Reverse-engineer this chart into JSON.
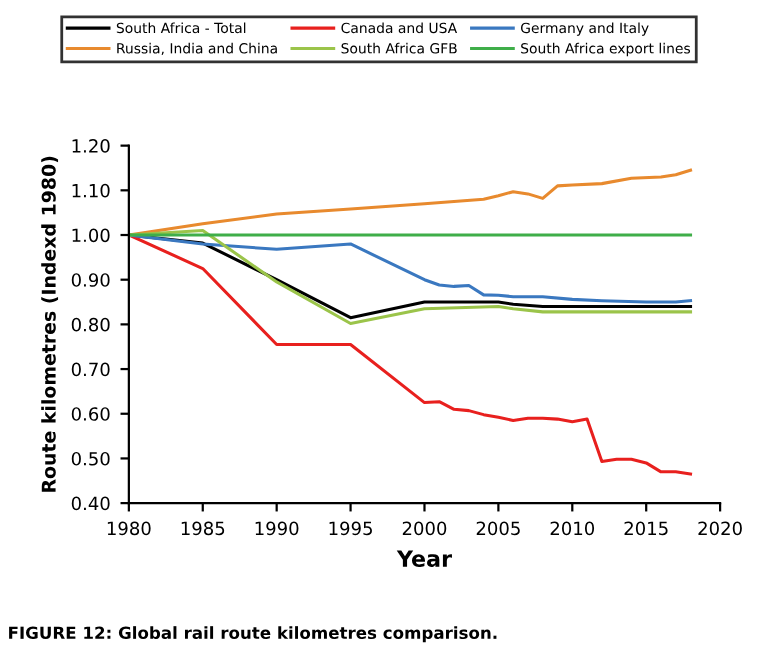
{
  "chart_data": {
    "type": "line",
    "xlabel": "Year",
    "ylabel": "Route kilometres (Indexd 1980)",
    "xlim": [
      1980,
      2020
    ],
    "xticks": [
      1980,
      1985,
      1990,
      1995,
      2000,
      2005,
      2010,
      2015,
      2020
    ],
    "ylim": [
      0.4,
      1.2
    ],
    "yticks": [
      {
        "value": 0.4,
        "label": "0.40"
      },
      {
        "value": 0.5,
        "label": "0.50"
      },
      {
        "value": 0.6,
        "label": "0.60"
      },
      {
        "value": 0.7,
        "label": "0.70"
      },
      {
        "value": 0.8,
        "label": "0.80"
      },
      {
        "value": 0.9,
        "label": "0.90"
      },
      {
        "value": 1.0,
        "label": "1.00"
      },
      {
        "value": 1.1,
        "label": "1.10"
      },
      {
        "value": 1.2,
        "label": "1.20"
      }
    ],
    "grid": false,
    "legend": "top",
    "marker": "none",
    "line_style": "solid",
    "annotations": [
      "FIGURE 12: Global rail route kilometres comparison."
    ],
    "series": [
      {
        "name": "South Africa - Total",
        "color": "#000000",
        "x": [
          1980,
          1985,
          1990,
          1995,
          2000,
          2005,
          2006,
          2008,
          2018
        ],
        "values": [
          1.0,
          0.982,
          0.9,
          0.815,
          0.85,
          0.85,
          0.845,
          0.84,
          0.84
        ]
      },
      {
        "name": "Canada and USA",
        "color": "#e8201e",
        "x": [
          1980,
          1985,
          1990,
          1995,
          2000,
          2001,
          2002,
          2003,
          2004,
          2005,
          2006,
          2007,
          2008,
          2009,
          2010,
          2011,
          2012,
          2013,
          2014,
          2015,
          2016,
          2017,
          2018
        ],
        "values": [
          1.0,
          0.925,
          0.755,
          0.755,
          0.625,
          0.627,
          0.61,
          0.607,
          0.598,
          0.592,
          0.585,
          0.59,
          0.59,
          0.588,
          0.582,
          0.588,
          0.493,
          0.498,
          0.498,
          0.49,
          0.47,
          0.47,
          0.465
        ]
      },
      {
        "name": "Germany and Italy",
        "color": "#3a78c0",
        "x": [
          1980,
          1985,
          1990,
          1995,
          2000,
          2001,
          2002,
          2003,
          2004,
          2005,
          2006,
          2008,
          2010,
          2012,
          2015,
          2017,
          2018
        ],
        "values": [
          1.0,
          0.98,
          0.968,
          0.98,
          0.9,
          0.888,
          0.885,
          0.887,
          0.866,
          0.865,
          0.862,
          0.862,
          0.856,
          0.853,
          0.85,
          0.85,
          0.853
        ]
      },
      {
        "name": "Russia, India and China",
        "color": "#e88a2e",
        "x": [
          1980,
          1985,
          1990,
          1995,
          2000,
          2004,
          2005,
          2006,
          2007,
          2008,
          2009,
          2010,
          2012,
          2014,
          2016,
          2017,
          2018
        ],
        "values": [
          1.0,
          1.025,
          1.047,
          1.058,
          1.07,
          1.08,
          1.088,
          1.097,
          1.092,
          1.082,
          1.11,
          1.112,
          1.115,
          1.127,
          1.13,
          1.135,
          1.145
        ]
      },
      {
        "name": "South Africa GFB",
        "color": "#9bc44a",
        "x": [
          1980,
          1985,
          1990,
          1995,
          2000,
          2005,
          2006,
          2008,
          2018
        ],
        "values": [
          1.0,
          1.01,
          0.895,
          0.802,
          0.835,
          0.84,
          0.835,
          0.828,
          0.828
        ]
      },
      {
        "name": "South Africa export lines",
        "color": "#3fae49",
        "x": [
          1980,
          2018
        ],
        "values": [
          1.0,
          1.0
        ]
      }
    ]
  }
}
